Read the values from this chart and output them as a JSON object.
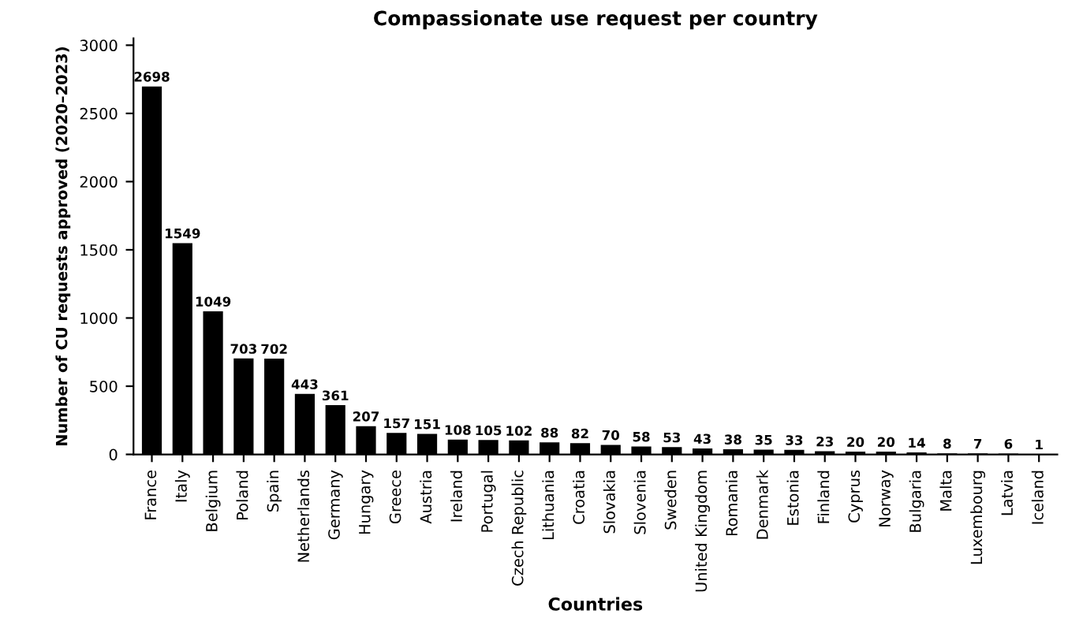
{
  "chart_data": {
    "type": "bar",
    "title": "Compassionate use request per country",
    "xlabel": "Countries",
    "ylabel": "Number of CU requests approved (2020–2023)",
    "categories": [
      "France",
      "Italy",
      "Belgium",
      "Poland",
      "Spain",
      "Netherlands",
      "Germany",
      "Hungary",
      "Greece",
      "Austria",
      "Ireland",
      "Portugal",
      "Czech Republic",
      "Lithuania",
      "Croatia",
      "Slovakia",
      "Slovenia",
      "Sweden",
      "United Kingdom",
      "Romania",
      "Denmark",
      "Estonia",
      "Finland",
      "Cyprus",
      "Norway",
      "Bulgaria",
      "Malta",
      "Luxembourg",
      "Latvia",
      "Iceland"
    ],
    "values": [
      2698,
      1549,
      1049,
      703,
      702,
      443,
      361,
      207,
      157,
      151,
      108,
      105,
      102,
      88,
      82,
      70,
      58,
      53,
      43,
      38,
      35,
      33,
      23,
      20,
      20,
      14,
      8,
      7,
      6,
      1
    ],
    "color": "#000000",
    "ylim": [
      0,
      3050
    ],
    "yticks": [
      0,
      500,
      1000,
      1500,
      2000,
      2500,
      3000
    ],
    "data_labels": true,
    "grid": false,
    "legend": false
  }
}
